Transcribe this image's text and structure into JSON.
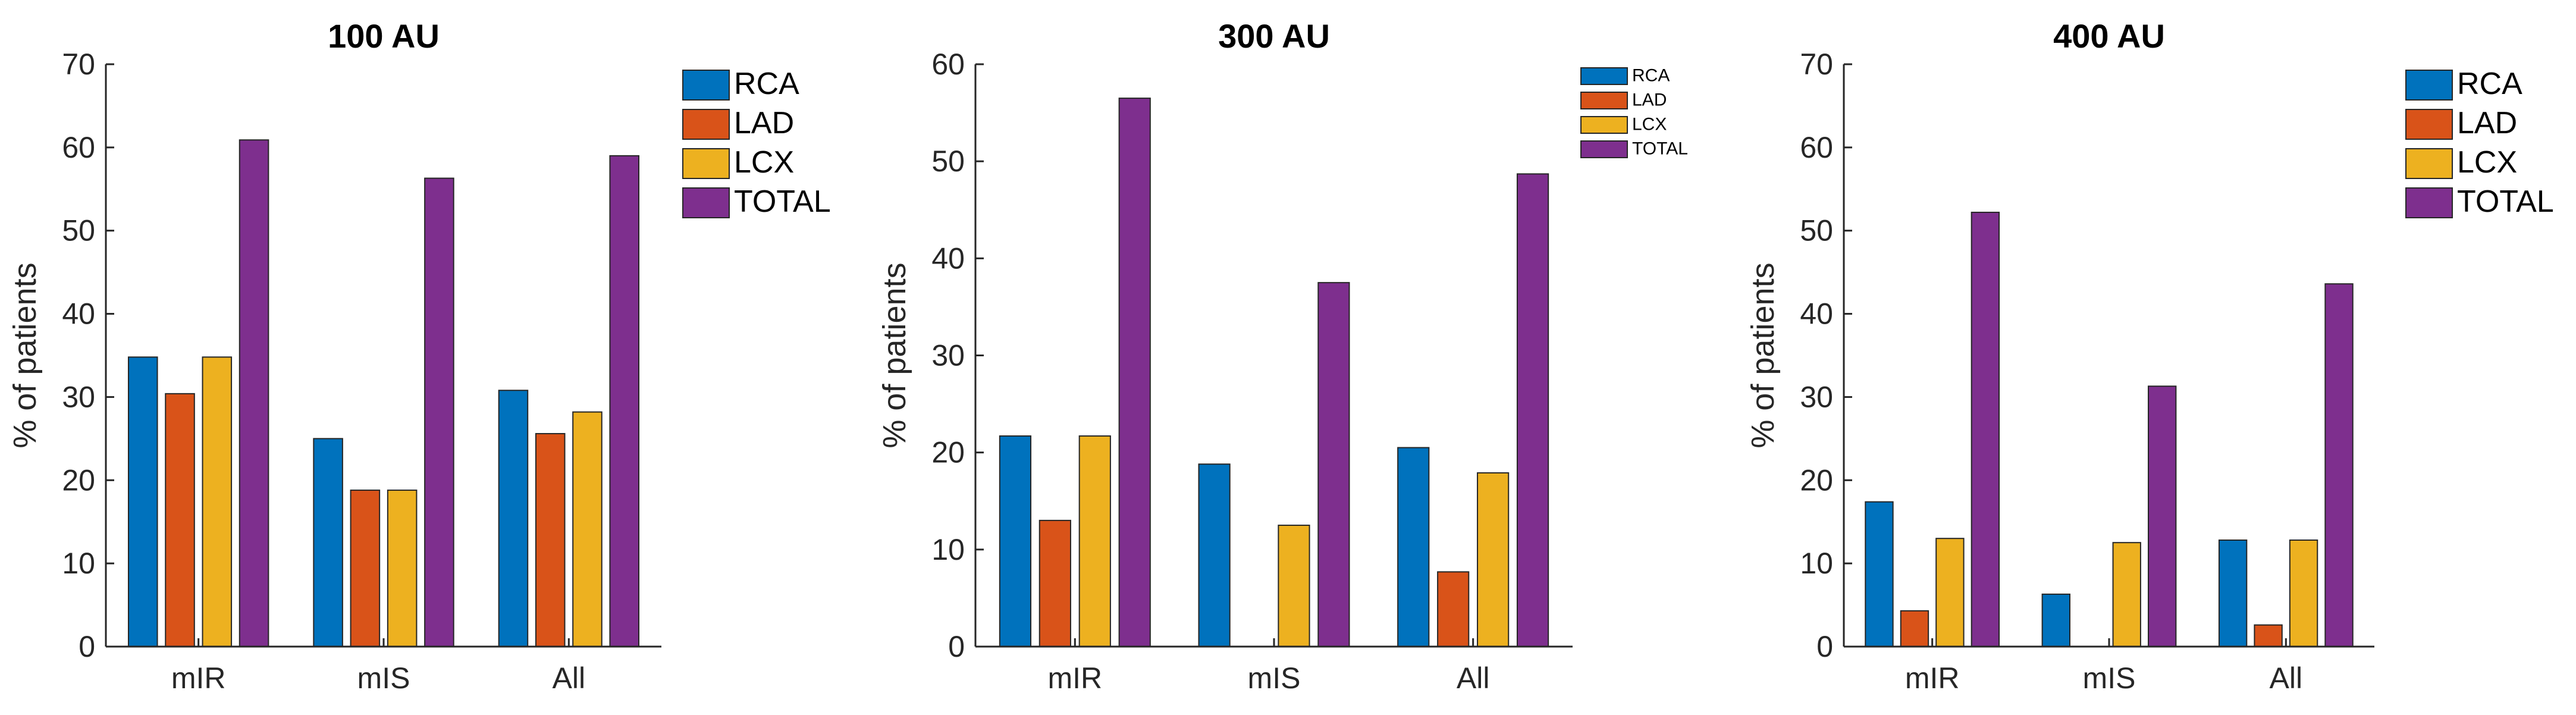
{
  "chart_data": [
    {
      "type": "bar",
      "title": "100 AU",
      "xlabel": "",
      "ylabel": "% of patients",
      "ylim": [
        0,
        70
      ],
      "yticks": [
        0,
        10,
        20,
        30,
        40,
        50,
        60,
        70
      ],
      "categories": [
        "mIR",
        "mIS",
        "All"
      ],
      "legend_position": "top-right",
      "series": [
        {
          "name": "RCA",
          "color": "#0072BD",
          "values": [
            34.8,
            25.0,
            30.8
          ]
        },
        {
          "name": "LAD",
          "color": "#D95319",
          "values": [
            30.4,
            18.8,
            25.6
          ]
        },
        {
          "name": "LCX",
          "color": "#EDB120",
          "values": [
            34.8,
            18.8,
            28.2
          ]
        },
        {
          "name": "TOTAL",
          "color": "#7E2F8E",
          "values": [
            60.9,
            56.3,
            59.0
          ]
        }
      ]
    },
    {
      "type": "bar",
      "title": "300 AU",
      "xlabel": "",
      "ylabel": "% of patients",
      "ylim": [
        0,
        60
      ],
      "yticks": [
        0,
        10,
        20,
        30,
        40,
        50,
        60
      ],
      "categories": [
        "mIR",
        "mIS",
        "All"
      ],
      "legend_position": "top-right",
      "series": [
        {
          "name": "RCA",
          "color": "#0072BD",
          "values": [
            21.7,
            18.8,
            20.5
          ]
        },
        {
          "name": "LAD",
          "color": "#D95319",
          "values": [
            13.0,
            0,
            7.7
          ]
        },
        {
          "name": "LCX",
          "color": "#EDB120",
          "values": [
            21.7,
            12.5,
            17.9
          ]
        },
        {
          "name": "TOTAL",
          "color": "#7E2F8E",
          "values": [
            56.5,
            37.5,
            48.7
          ]
        }
      ]
    },
    {
      "type": "bar",
      "title": "400 AU",
      "xlabel": "",
      "ylabel": "% of patients",
      "ylim": [
        0,
        70
      ],
      "yticks": [
        0,
        10,
        20,
        30,
        40,
        50,
        60,
        70
      ],
      "categories": [
        "mIR",
        "mIS",
        "All"
      ],
      "legend_position": "top-right",
      "series": [
        {
          "name": "RCA",
          "color": "#0072BD",
          "values": [
            17.4,
            6.3,
            12.8
          ]
        },
        {
          "name": "LAD",
          "color": "#D95319",
          "values": [
            4.3,
            0,
            2.6
          ]
        },
        {
          "name": "LCX",
          "color": "#EDB120",
          "values": [
            13.0,
            12.5,
            12.8
          ]
        },
        {
          "name": "TOTAL",
          "color": "#7E2F8E",
          "values": [
            52.2,
            31.3,
            43.6
          ]
        }
      ]
    }
  ]
}
